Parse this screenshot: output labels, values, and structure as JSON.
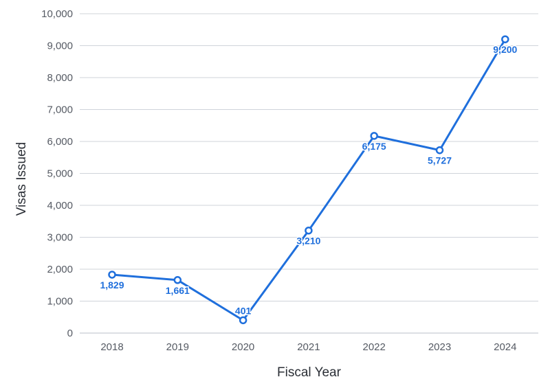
{
  "chart_data": {
    "type": "line",
    "x": [
      "2018",
      "2019",
      "2020",
      "2021",
      "2022",
      "2023",
      "2024"
    ],
    "series": [
      {
        "values": [
          1829,
          1661,
          401,
          3210,
          6175,
          5727,
          9200
        ]
      }
    ],
    "data_labels": [
      "1,829",
      "1,661",
      "401",
      "3,210",
      "6,175",
      "5,727",
      "9,200"
    ],
    "xlabel": "Fiscal Year",
    "ylabel": "Visas Issued",
    "ylim": [
      0,
      10000
    ],
    "yticks": [
      0,
      1000,
      2000,
      3000,
      4000,
      5000,
      6000,
      7000,
      8000,
      9000,
      10000
    ],
    "ytick_labels": [
      "0",
      "1,000",
      "2,000",
      "3,000",
      "4,000",
      "5,000",
      "6,000",
      "7,000",
      "8,000",
      "9,000",
      "10,000"
    ],
    "grid": "horizontal",
    "legend": "none",
    "line_color": "#1f6fdc"
  }
}
